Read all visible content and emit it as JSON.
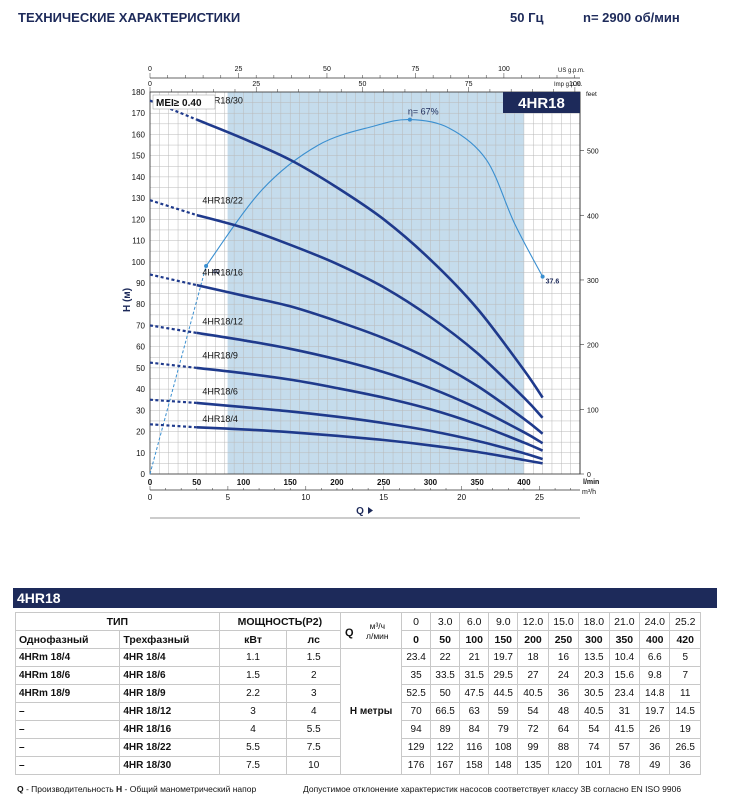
{
  "header": {
    "title": "ТЕХНИЧЕСКИЕ ХАРАКТЕРИСТИКИ",
    "freq": "50 Гц",
    "speed": "n= 2900 об/мин"
  },
  "chart_data": {
    "type": "line",
    "model": "4HR18",
    "mei_label": "MEI≥ 0.40",
    "efficiency_label": "η= 67%",
    "eff_left_label": "40",
    "eff_right_label": "37.6",
    "h_axis_label": "H (м)",
    "q_axis_label": "Q",
    "axes": {
      "lmin": {
        "unit": "l/min",
        "range": [
          0,
          460
        ],
        "ticks": [
          0,
          50,
          100,
          150,
          200,
          250,
          300,
          350,
          400
        ]
      },
      "m3h": {
        "unit": "m³/h",
        "range": [
          0,
          27.6
        ],
        "ticks": [
          0,
          5,
          10,
          15,
          20,
          25
        ]
      },
      "usgpm": {
        "unit": "US g.p.m.",
        "range": [
          0,
          121.5
        ],
        "ticks": [
          0,
          25,
          50,
          75,
          100
        ]
      },
      "impgpm": {
        "unit": "Imp g.p.m.",
        "range": [
          0,
          101.2
        ],
        "ticks": [
          0,
          25,
          50,
          75,
          100
        ]
      },
      "h_m": {
        "unit": "H (м)",
        "range": [
          0,
          180
        ],
        "ticks": [
          0,
          10,
          20,
          30,
          40,
          50,
          60,
          70,
          80,
          90,
          100,
          110,
          120,
          130,
          140,
          150,
          160,
          170,
          180
        ]
      },
      "h_feet": {
        "unit": "feet",
        "range": [
          0,
          590.6
        ],
        "ticks": [
          0,
          100,
          200,
          300,
          400,
          500
        ]
      }
    },
    "recommended_range_lmin": [
      83,
      400
    ],
    "series": [
      {
        "name": "4HR18/4",
        "x": [
          0,
          50,
          100,
          150,
          200,
          250,
          300,
          350,
          400,
          420
        ],
        "y": [
          23.4,
          22,
          21,
          19.7,
          18,
          16,
          13.5,
          10.4,
          6.6,
          5
        ]
      },
      {
        "name": "4HR18/6",
        "x": [
          0,
          50,
          100,
          150,
          200,
          250,
          300,
          350,
          400,
          420
        ],
        "y": [
          35,
          33.5,
          31.5,
          29.5,
          27,
          24,
          20.3,
          15.6,
          9.8,
          7
        ]
      },
      {
        "name": "4HR18/9",
        "x": [
          0,
          50,
          100,
          150,
          200,
          250,
          300,
          350,
          400,
          420
        ],
        "y": [
          52.5,
          50,
          47.5,
          44.5,
          40.5,
          36,
          30.5,
          23.4,
          14.8,
          11
        ]
      },
      {
        "name": "4HR18/12",
        "x": [
          0,
          50,
          100,
          150,
          200,
          250,
          300,
          350,
          400,
          420
        ],
        "y": [
          70,
          66.5,
          63,
          59,
          54,
          48,
          40.5,
          31,
          19.7,
          14.5
        ]
      },
      {
        "name": "4HR18/16",
        "x": [
          0,
          50,
          100,
          150,
          200,
          250,
          300,
          350,
          400,
          420
        ],
        "y": [
          94,
          89,
          84,
          79,
          72,
          64,
          54,
          41.5,
          26,
          19
        ]
      },
      {
        "name": "4HR18/22",
        "x": [
          0,
          50,
          100,
          150,
          200,
          250,
          300,
          350,
          400,
          420
        ],
        "y": [
          129,
          122,
          116,
          108,
          99,
          88,
          74,
          57,
          36,
          26.5
        ]
      },
      {
        "name": "4HR18/30",
        "x": [
          0,
          50,
          100,
          150,
          200,
          250,
          300,
          350,
          400,
          420
        ],
        "y": [
          176,
          167,
          158,
          148,
          135,
          120,
          101,
          78,
          49,
          36
        ]
      }
    ],
    "efficiency_curve": {
      "x": [
        0,
        60,
        120,
        180,
        240,
        278,
        320,
        360,
        390,
        420
      ],
      "y": [
        0,
        98,
        134,
        155,
        164,
        167,
        163,
        148,
        118,
        93
      ]
    }
  },
  "table": {
    "title": "4HR18",
    "headers": {
      "type": "ТИП",
      "power": "МОЩНОСТЬ(P2)",
      "single": "Однофазный",
      "three": "Трехфазный",
      "kw": "кВт",
      "hp": "лс",
      "q": "Q",
      "m3h": "м³/ч",
      "lmin": "л/мин",
      "h_metres": "H метры"
    },
    "q_m3h": [
      "0",
      "3.0",
      "6.0",
      "9.0",
      "12.0",
      "15.0",
      "18.0",
      "21.0",
      "24.0",
      "25.2"
    ],
    "q_lmin": [
      "0",
      "50",
      "100",
      "150",
      "200",
      "250",
      "300",
      "350",
      "400",
      "420"
    ],
    "rows": [
      {
        "single": "4HRm 18/4",
        "three": "4HR 18/4",
        "kw": "1.1",
        "hp": "1.5",
        "h": [
          "23.4",
          "22",
          "21",
          "19.7",
          "18",
          "16",
          "13.5",
          "10.4",
          "6.6",
          "5"
        ]
      },
      {
        "single": "4HRm 18/6",
        "three": "4HR 18/6",
        "kw": "1.5",
        "hp": "2",
        "h": [
          "35",
          "33.5",
          "31.5",
          "29.5",
          "27",
          "24",
          "20.3",
          "15.6",
          "9.8",
          "7"
        ]
      },
      {
        "single": "4HRm 18/9",
        "three": "4HR 18/9",
        "kw": "2.2",
        "hp": "3",
        "h": [
          "52.5",
          "50",
          "47.5",
          "44.5",
          "40.5",
          "36",
          "30.5",
          "23.4",
          "14.8",
          "11"
        ]
      },
      {
        "single": "–",
        "three": "4HR 18/12",
        "kw": "3",
        "hp": "4",
        "h": [
          "70",
          "66.5",
          "63",
          "59",
          "54",
          "48",
          "40.5",
          "31",
          "19.7",
          "14.5"
        ]
      },
      {
        "single": "–",
        "three": "4HR 18/16",
        "kw": "4",
        "hp": "5.5",
        "h": [
          "94",
          "89",
          "84",
          "79",
          "72",
          "64",
          "54",
          "41.5",
          "26",
          "19"
        ]
      },
      {
        "single": "–",
        "three": "4HR 18/22",
        "kw": "5.5",
        "hp": "7.5",
        "h": [
          "129",
          "122",
          "116",
          "108",
          "99",
          "88",
          "74",
          "57",
          "36",
          "26.5"
        ]
      },
      {
        "single": "–",
        "three": "4HR 18/30",
        "kw": "7.5",
        "hp": "10",
        "h": [
          "176",
          "167",
          "158",
          "148",
          "135",
          "120",
          "101",
          "78",
          "49",
          "36"
        ]
      }
    ]
  },
  "footer": {
    "q_abbr": "Q",
    "q_text": " - Производительность  ",
    "h_abbr": "H",
    "h_text": " - Общий манометрический напор",
    "right": "Допустимое отклонение характеристик насосов соответствует классу 3B согласно EN ISO 9906"
  }
}
